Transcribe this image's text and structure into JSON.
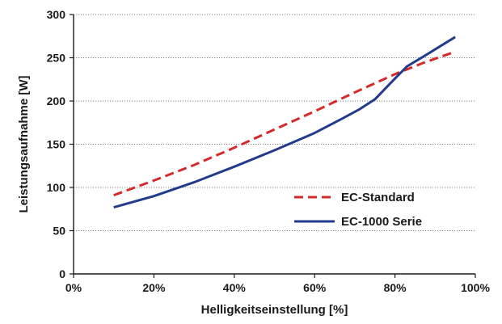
{
  "chart_data": {
    "type": "line",
    "title": "",
    "xlabel": "Helligkeitseinstellung [%]",
    "ylabel": "Leistungsaufnahme [W]",
    "xlim": [
      0,
      100
    ],
    "ylim": [
      0,
      300
    ],
    "x_ticks": [
      0,
      20,
      40,
      60,
      80,
      100
    ],
    "x_tick_labels": [
      "0%",
      "20%",
      "40%",
      "60%",
      "80%",
      "100%"
    ],
    "y_ticks": [
      0,
      50,
      100,
      150,
      200,
      250,
      300
    ],
    "y_tick_labels": [
      "0",
      "50",
      "100",
      "150",
      "200",
      "250",
      "300"
    ],
    "grid": "horizontal dotted",
    "legend_position": "lower-right",
    "series": [
      {
        "name": "EC-Standard",
        "color": "#d42a2a",
        "style": "dashed",
        "x": [
          10,
          20,
          30,
          40,
          50,
          60,
          70,
          80,
          87,
          95
        ],
        "y": [
          91,
          108,
          126,
          146,
          167,
          188,
          210,
          231,
          244,
          257
        ]
      },
      {
        "name": "EC-1000 Serie",
        "color": "#233b8c",
        "style": "solid",
        "x": [
          10,
          20,
          30,
          40,
          50,
          60,
          67,
          71,
          75,
          80,
          83,
          88,
          95
        ],
        "y": [
          77,
          90,
          106,
          124,
          143,
          163,
          180,
          190,
          202,
          226,
          240,
          254,
          274
        ]
      }
    ]
  }
}
